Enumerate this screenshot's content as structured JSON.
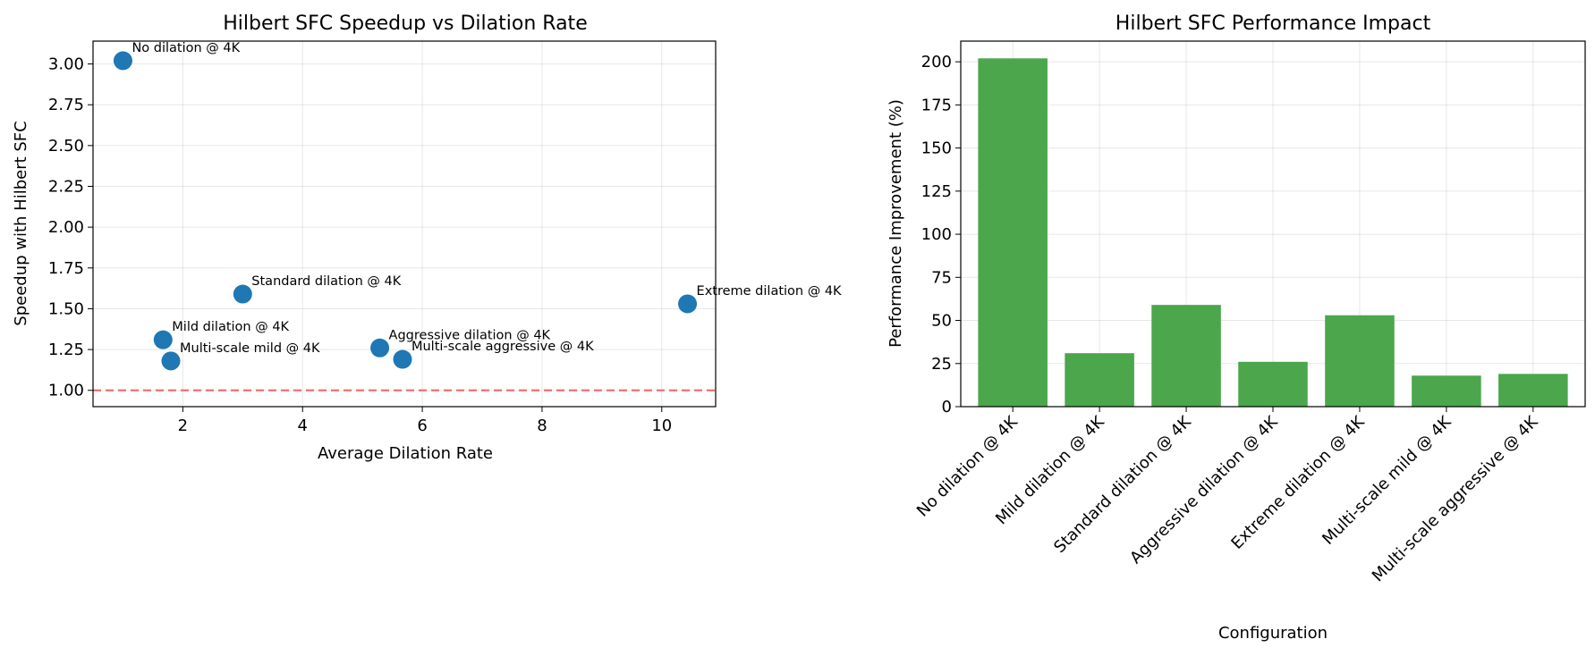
{
  "chart_data": [
    {
      "type": "scatter",
      "title": "Hilbert SFC Speedup vs Dilation Rate",
      "xlabel": "Average Dilation Rate",
      "ylabel": "Speedup with Hilbert SFC",
      "xlim": [
        0.5,
        10.9
      ],
      "ylim": [
        0.9,
        3.14
      ],
      "xticks": [
        2,
        4,
        6,
        8,
        10
      ],
      "yticks": [
        1.0,
        1.25,
        1.5,
        1.75,
        2.0,
        2.25,
        2.5,
        2.75,
        3.0
      ],
      "ytick_labels": [
        "1.00",
        "1.25",
        "1.50",
        "1.75",
        "2.00",
        "2.25",
        "2.50",
        "2.75",
        "3.00"
      ],
      "grid": true,
      "point_color": "#1f77b4",
      "reference_line": {
        "y": 1.0,
        "color": "#f07070",
        "style": "dashed"
      },
      "points": [
        {
          "label": "No dilation @ 4K",
          "x": 1.0,
          "y": 3.02
        },
        {
          "label": "Mild dilation @ 4K",
          "x": 1.67,
          "y": 1.31
        },
        {
          "label": "Standard dilation @ 4K",
          "x": 3.0,
          "y": 1.59
        },
        {
          "label": "Aggressive dilation @ 4K",
          "x": 5.29,
          "y": 1.26
        },
        {
          "label": "Extreme dilation @ 4K",
          "x": 10.43,
          "y": 1.53
        },
        {
          "label": "Multi-scale mild @ 4K",
          "x": 1.8,
          "y": 1.18
        },
        {
          "label": "Multi-scale aggressive @ 4K",
          "x": 5.67,
          "y": 1.19
        }
      ]
    },
    {
      "type": "bar",
      "title": "Hilbert SFC Performance Impact",
      "xlabel": "Configuration",
      "ylabel": "Performance Improvement (%)",
      "ylim": [
        0,
        212
      ],
      "yticks": [
        0,
        25,
        50,
        75,
        100,
        125,
        150,
        175,
        200
      ],
      "grid": true,
      "bar_color": "#4ca64c",
      "categories": [
        "No dilation @ 4K",
        "Mild dilation @ 4K",
        "Standard dilation @ 4K",
        "Aggressive dilation @ 4K",
        "Extreme dilation @ 4K",
        "Multi-scale mild @ 4K",
        "Multi-scale aggressive @ 4K"
      ],
      "values": [
        202,
        31,
        59,
        26,
        53,
        18,
        19
      ]
    }
  ]
}
